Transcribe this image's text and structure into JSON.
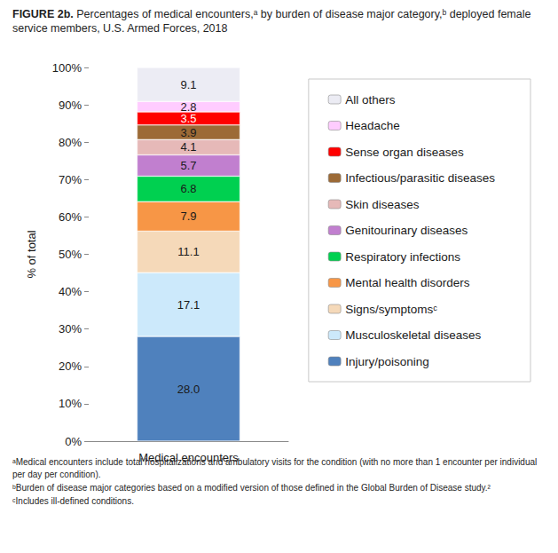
{
  "chart_data": {
    "type": "bar",
    "stacked": true,
    "orientation": "vertical",
    "data_labels": true,
    "grid": false,
    "legend": "right",
    "figure_number": "FIGURE 2b.",
    "title": "Percentages of medical encounters,ᵃ by burden of disease major category,ᵇ deployed female service members, U.S. Armed Forces, 2018",
    "y_label": "% of total",
    "categories": [
      "Medical encounters"
    ],
    "ylim": [
      0,
      100
    ],
    "yticks": [
      {
        "value": 0,
        "label": "0%"
      },
      {
        "value": 10,
        "label": "10%"
      },
      {
        "value": 20,
        "label": "20%"
      },
      {
        "value": 30,
        "label": "30%"
      },
      {
        "value": 40,
        "label": "40%"
      },
      {
        "value": 50,
        "label": "50%"
      },
      {
        "value": 60,
        "label": "60%"
      },
      {
        "value": 70,
        "label": "70%"
      },
      {
        "value": 80,
        "label": "80%"
      },
      {
        "value": 90,
        "label": "90%"
      },
      {
        "value": 100,
        "label": "100%"
      }
    ],
    "series": [
      {
        "name": "Injury/poisoning",
        "color": "#4f81bd",
        "values": [
          28.0
        ],
        "value_labels": [
          "28.0"
        ]
      },
      {
        "name": "Musculoskeletal diseases",
        "color": "#cce9fb",
        "values": [
          17.1
        ]
      },
      {
        "name": "Signs/symptomsᶜ",
        "color": "#f5d9b9",
        "values": [
          11.1
        ]
      },
      {
        "name": "Mental health disorders",
        "color": "#f79646",
        "values": [
          7.9
        ]
      },
      {
        "name": "Respiratory infections",
        "color": "#00d050",
        "values": [
          6.8
        ]
      },
      {
        "name": "Genitourinary diseases",
        "color": "#c17fcf",
        "values": [
          5.7
        ]
      },
      {
        "name": "Skin diseases",
        "color": "#e6b9b8",
        "values": [
          4.1
        ]
      },
      {
        "name": "Infectious/parasitic diseases",
        "color": "#9c6a36",
        "values": [
          3.9
        ]
      },
      {
        "name": "Sense organ diseases",
        "color": "#ff0000",
        "values": [
          3.5
        ]
      },
      {
        "name": "Headache",
        "color": "#ffccff",
        "values": [
          2.8
        ]
      },
      {
        "name": "All others",
        "color": "#ececf4",
        "values": [
          9.1
        ]
      }
    ],
    "notes": [
      "ᵃMedical encounters include total hospitalizations and ambulatory visits for the condition (with no more than 1 encounter per individual per day per condition).",
      "ᵇBurden of disease major categories based on a modified version of those defined in the Global Burden of Disease study.²",
      "ᶜIncludes ill-defined conditions."
    ]
  }
}
